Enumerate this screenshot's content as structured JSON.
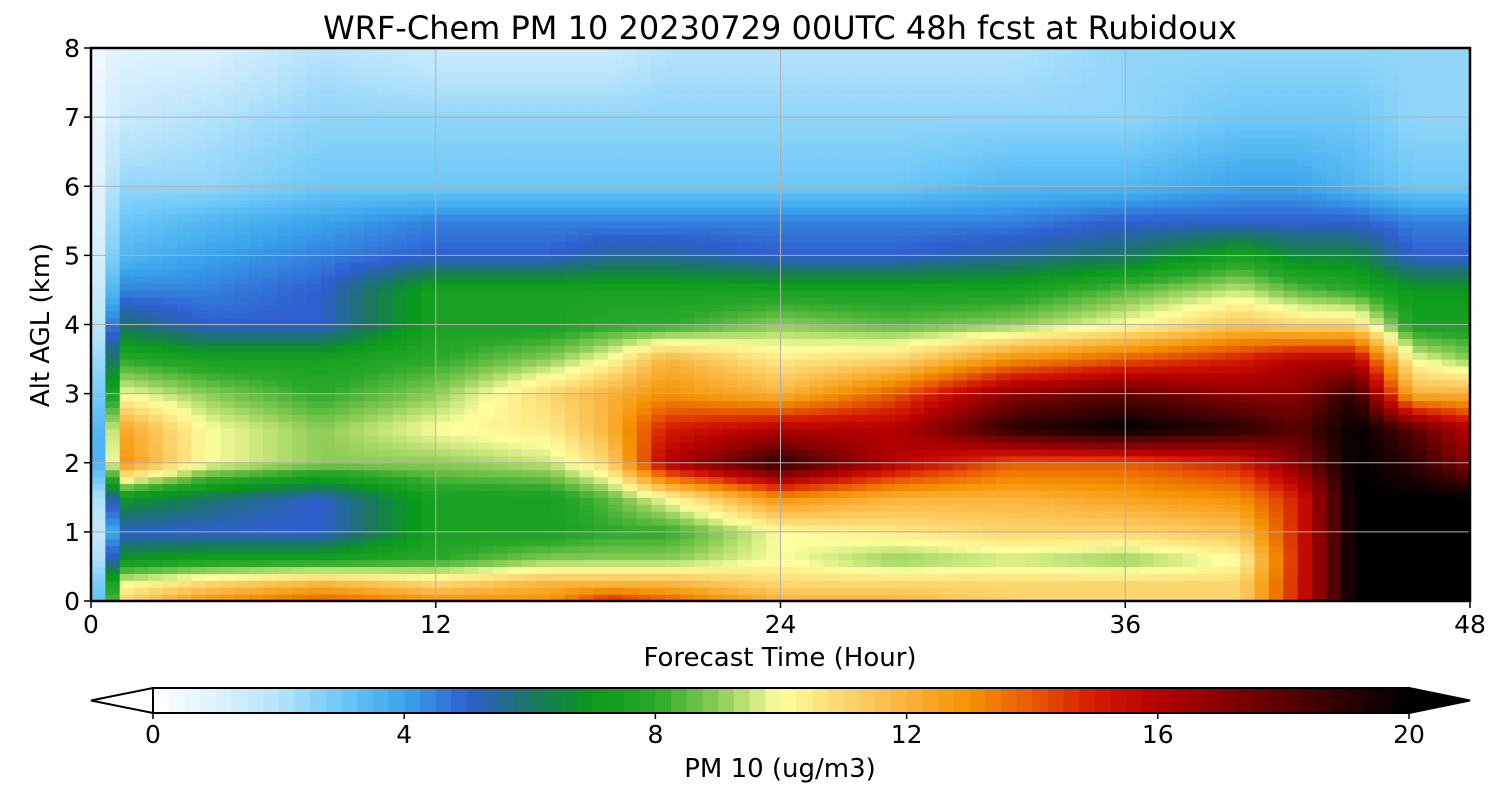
{
  "chart_data": {
    "type": "heatmap",
    "title": "WRF-Chem PM 10  20230729 00UTC 48h fcst at Rubidoux",
    "xlabel": "Forecast Time (Hour)",
    "ylabel": "Alt AGL (km)",
    "xlim": [
      0,
      48
    ],
    "ylim": [
      0,
      8
    ],
    "xticks": [
      "0",
      "12",
      "24",
      "36",
      "48"
    ],
    "yticks": [
      "0",
      "1",
      "2",
      "3",
      "4",
      "5",
      "6",
      "7",
      "8"
    ],
    "grid": true,
    "x_hours": [
      0,
      1,
      4,
      8,
      12,
      16,
      18,
      20,
      24,
      28,
      32,
      36,
      40,
      42,
      44,
      46,
      48
    ],
    "z_km": [
      0,
      0.25,
      0.6,
      1.0,
      1.5,
      2.0,
      2.5,
      3.0,
      3.5,
      4.0,
      4.5,
      5.0,
      5.5,
      6.0,
      7.0,
      8.0
    ],
    "values_ug_m3": [
      [
        0.5,
        11,
        13,
        14,
        13,
        13,
        15,
        14,
        12,
        12,
        11,
        11,
        11,
        15,
        20,
        20,
        20
      ],
      [
        0.5,
        10,
        11,
        12,
        11,
        12,
        12,
        12,
        11,
        11,
        11,
        11,
        11,
        15,
        20,
        20,
        20
      ],
      [
        0.5,
        7,
        7.5,
        7.5,
        8,
        9,
        9,
        9,
        10,
        9,
        9.5,
        9,
        10,
        15,
        20,
        20,
        20
      ],
      [
        0.5,
        5,
        5,
        5,
        7.5,
        7.5,
        8,
        8,
        10,
        10.5,
        11,
        11,
        11.5,
        15,
        20,
        20,
        20
      ],
      [
        0.5,
        7,
        6,
        5,
        7.5,
        7.5,
        8.5,
        10,
        13,
        12,
        12,
        12.5,
        13,
        15,
        20,
        20,
        20
      ],
      [
        0.5,
        13,
        10,
        9,
        9,
        9.5,
        11,
        16,
        19,
        16,
        14,
        14,
        15,
        17,
        20,
        19,
        17
      ],
      [
        0.5,
        12.5,
        10,
        9,
        10,
        10.5,
        12,
        15,
        16,
        16,
        19,
        20,
        19,
        18,
        20,
        18,
        16
      ],
      [
        0.5,
        10,
        9,
        8,
        9,
        11,
        12,
        13,
        12,
        14,
        17,
        18,
        17,
        17,
        19,
        12,
        12
      ],
      [
        0.5,
        8,
        7.5,
        7.5,
        8,
        9,
        10,
        12,
        10.5,
        11,
        13,
        14,
        15,
        16,
        16,
        10,
        9
      ],
      [
        0.5,
        6,
        5,
        5,
        7.5,
        7.5,
        8,
        8,
        9,
        8.5,
        9,
        10,
        11.5,
        11,
        11,
        7.5,
        7.5
      ],
      [
        0.5,
        4.5,
        4.5,
        5,
        7.5,
        7.5,
        7.5,
        7.5,
        7.5,
        7.5,
        7.5,
        8.5,
        9.5,
        8.5,
        8,
        7,
        7
      ],
      [
        0.5,
        3.5,
        4,
        4.5,
        5,
        5,
        5.5,
        5.5,
        5,
        5,
        5.5,
        6,
        7.5,
        6.5,
        6.5,
        5,
        5
      ],
      [
        0.5,
        3,
        3.5,
        4,
        4.5,
        4.5,
        4.5,
        4.5,
        4.5,
        4.5,
        4.5,
        5,
        5,
        5,
        5,
        4.5,
        4.5
      ],
      [
        0.5,
        2.5,
        2.5,
        3,
        3,
        3,
        3,
        3,
        3,
        3,
        3.5,
        3.5,
        4,
        4,
        3.5,
        3,
        3
      ],
      [
        0.5,
        1.5,
        2,
        2.5,
        2.5,
        2.5,
        2.5,
        2.5,
        2.5,
        2.5,
        2.5,
        2.5,
        3,
        3,
        3,
        2.5,
        2.5
      ],
      [
        0.3,
        1,
        1,
        2,
        1.5,
        1.5,
        1.5,
        2,
        2,
        2,
        2,
        2.5,
        2.5,
        2.5,
        2.5,
        2.5,
        2.5
      ]
    ],
    "colorbar": {
      "label": "PM 10  (ug/m3)",
      "min": 0,
      "max": 20,
      "ticks": [
        "0",
        "4",
        "8",
        "12",
        "16",
        "20"
      ],
      "extend": "both",
      "stops": [
        {
          "v": 0,
          "c": "#ffffff"
        },
        {
          "v": 1,
          "c": "#dff2fd"
        },
        {
          "v": 2,
          "c": "#b5e3fb"
        },
        {
          "v": 3,
          "c": "#6dc8f7"
        },
        {
          "v": 4,
          "c": "#3aa5ec"
        },
        {
          "v": 5,
          "c": "#2e5fcf"
        },
        {
          "v": 6,
          "c": "#1b7565"
        },
        {
          "v": 7,
          "c": "#099a1a"
        },
        {
          "v": 8,
          "c": "#2aa82a"
        },
        {
          "v": 9,
          "c": "#8ccc55"
        },
        {
          "v": 10,
          "c": "#ffff9e"
        },
        {
          "v": 11,
          "c": "#fcd66e"
        },
        {
          "v": 12,
          "c": "#fbb23c"
        },
        {
          "v": 13,
          "c": "#f59200"
        },
        {
          "v": 14,
          "c": "#e85a00"
        },
        {
          "v": 15,
          "c": "#d41a00"
        },
        {
          "v": 16,
          "c": "#b50000"
        },
        {
          "v": 17,
          "c": "#8a0000"
        },
        {
          "v": 18,
          "c": "#5a0000"
        },
        {
          "v": 19,
          "c": "#2a0000"
        },
        {
          "v": 20,
          "c": "#000000"
        }
      ]
    }
  }
}
